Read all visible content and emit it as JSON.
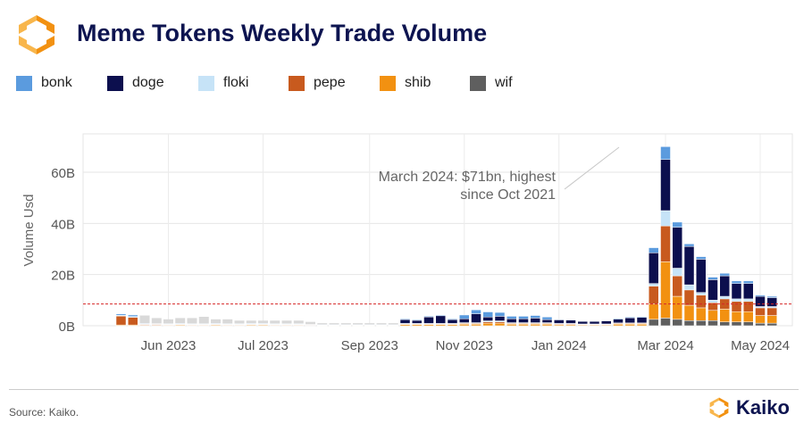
{
  "header": {
    "title": "Meme Tokens Weekly Trade Volume",
    "source": "Source: Kaiko.",
    "brand": "Kaiko"
  },
  "colors": {
    "bonk": "#5b9bde",
    "doge": "#0c0f4e",
    "floki": "#c6e3f7",
    "pepe": "#c85a1e",
    "shib": "#f29111",
    "wif": "#5f5f5f",
    "early": "#d9d9d9",
    "threshold": "#d62728"
  },
  "chart_data": {
    "type": "bar",
    "stacked": true,
    "ylabel": "Volume Usd",
    "ylim": [
      0,
      75
    ],
    "yticks": [
      0,
      20,
      40,
      60
    ],
    "ytick_labels": [
      "0B",
      "20B",
      "40B",
      "60B"
    ],
    "xtick_labels": [
      "Jun 2023",
      "Jul 2023",
      "Sep 2023",
      "Nov 2023",
      "Jan 2024",
      "Mar 2024",
      "May 2024"
    ],
    "xtick_weeks": [
      4,
      12,
      21,
      29,
      37,
      46,
      54
    ],
    "reference_line": 8.5,
    "annotation": [
      "March 2024: $71bn, highest",
      "since Oct 2021"
    ],
    "legend": [
      "bonk",
      "doge",
      "floki",
      "pepe",
      "shib",
      "wif"
    ],
    "weeks": 56,
    "series": [
      {
        "name": "wif",
        "values": [
          0,
          0,
          0,
          0,
          0,
          0,
          0,
          0,
          0,
          0,
          0,
          0,
          0,
          0,
          0,
          0,
          0,
          0,
          0,
          0,
          0,
          0,
          0,
          0,
          0,
          0,
          0,
          0,
          0,
          0,
          0,
          0,
          0,
          0,
          0,
          0,
          0,
          0,
          0,
          0,
          0,
          0,
          0,
          0,
          0,
          2.5,
          3,
          2.5,
          2,
          2,
          2,
          1.5,
          1.5,
          1.5,
          1,
          1
        ]
      },
      {
        "name": "shib",
        "values": [
          0.3,
          0.3,
          0.2,
          0.2,
          0.2,
          0.3,
          0.2,
          0.2,
          0.3,
          0.2,
          0.2,
          0.3,
          0.3,
          0.2,
          0.2,
          0.2,
          0.2,
          0.1,
          0.1,
          0.1,
          0.1,
          0.1,
          0.1,
          0.1,
          0.5,
          0.5,
          0.5,
          0.5,
          0.5,
          0.6,
          0.6,
          1,
          1,
          0.6,
          0.6,
          0.6,
          0.6,
          0.4,
          0.4,
          0.3,
          0.3,
          0.3,
          0.6,
          0.6,
          0.6,
          6,
          22,
          9,
          6,
          5,
          4,
          5,
          4,
          4,
          3,
          3
        ]
      },
      {
        "name": "pepe",
        "values": [
          3.5,
          3,
          0.3,
          0.3,
          0.2,
          0.2,
          0.2,
          0.2,
          0.2,
          0.2,
          0.2,
          0.2,
          0.2,
          0.2,
          0.2,
          0.2,
          0.1,
          0.1,
          0.1,
          0.1,
          0.1,
          0.1,
          0.1,
          0.1,
          0.2,
          0.2,
          0.2,
          0.2,
          0.2,
          0.3,
          0.3,
          0.5,
          0.5,
          0.3,
          0.3,
          0.3,
          0.3,
          0.3,
          0.3,
          0.2,
          0.2,
          0.2,
          0.3,
          0.3,
          0.3,
          7,
          14,
          8,
          6,
          5,
          3,
          4,
          4,
          4,
          3,
          3
        ]
      },
      {
        "name": "floki",
        "values": [
          0.3,
          0.3,
          0.2,
          0.2,
          0.2,
          0.2,
          0.2,
          0.2,
          0.2,
          0.2,
          0.2,
          0.2,
          0.2,
          0.2,
          0.2,
          0.2,
          0.1,
          0.1,
          0.1,
          0.1,
          0.1,
          0.1,
          0.1,
          0.1,
          0.2,
          0.2,
          0.2,
          0.2,
          0.2,
          0.3,
          0.3,
          0.4,
          0.4,
          0.3,
          0.3,
          0.3,
          0.3,
          0.2,
          0.2,
          0.2,
          0.2,
          0.2,
          0.2,
          0.2,
          0.2,
          1,
          6,
          3,
          2,
          1,
          1,
          1,
          1,
          1,
          0.5,
          0.5
        ]
      },
      {
        "name": "doge",
        "values": [
          0,
          0,
          0,
          0,
          0,
          0,
          0,
          0,
          0,
          0,
          0,
          0,
          0,
          0,
          0,
          0,
          0,
          0,
          0,
          0,
          0,
          0,
          0,
          0,
          1.5,
          1.2,
          2.5,
          3,
          1.5,
          1.5,
          3.5,
          1.5,
          1.8,
          1.5,
          1.5,
          1.8,
          1.2,
          1.4,
          1.3,
          1,
          1,
          1.2,
          1.5,
          2,
          2.2,
          12,
          20,
          16,
          15,
          13,
          8,
          8,
          6,
          6,
          4,
          3.5
        ]
      },
      {
        "name": "bonk",
        "values": [
          0.5,
          0.6,
          0.2,
          0.1,
          0.2,
          0.2,
          0.2,
          0.2,
          0.2,
          0.2,
          0.2,
          0.2,
          0.2,
          0.2,
          0.2,
          0.2,
          0.1,
          0.1,
          0.1,
          0.1,
          0.1,
          0.1,
          0.1,
          0.1,
          0.3,
          0.3,
          0.3,
          0.3,
          0.3,
          1.5,
          1.5,
          2,
          1.5,
          1,
          1,
          1,
          1,
          0.2,
          0.2,
          0.2,
          0.2,
          0.2,
          0.3,
          0.3,
          0.3,
          2,
          5,
          2,
          1,
          1,
          1,
          1,
          1,
          1,
          0.5,
          0.5
        ]
      }
    ],
    "early_values": [
      0,
      0,
      4,
      3,
      2.5,
      3,
      3,
      3.5,
      2.5,
      2.5,
      2,
      2,
      2,
      2,
      2,
      2,
      1.5,
      1,
      1,
      1,
      1,
      1,
      1,
      1,
      0,
      0,
      0,
      0,
      0,
      0,
      0,
      0,
      0,
      0,
      0,
      0,
      0,
      0,
      0,
      0,
      0,
      0,
      0,
      0,
      0,
      0,
      0,
      0,
      0,
      0,
      0,
      0,
      0,
      0,
      0,
      0
    ]
  }
}
